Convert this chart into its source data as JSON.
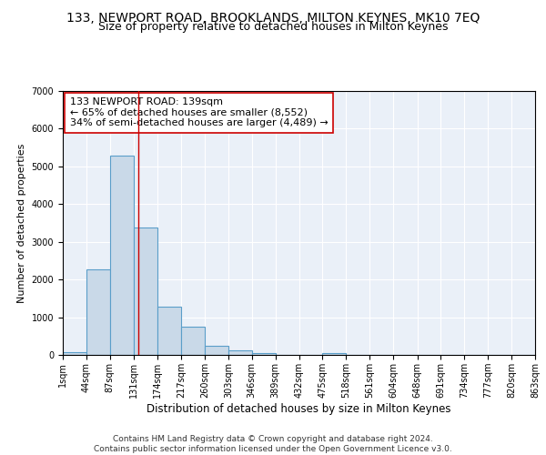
{
  "title": "133, NEWPORT ROAD, BROOKLANDS, MILTON KEYNES, MK10 7EQ",
  "subtitle": "Size of property relative to detached houses in Milton Keynes",
  "xlabel": "Distribution of detached houses by size in Milton Keynes",
  "ylabel": "Number of detached properties",
  "footer_line1": "Contains HM Land Registry data © Crown copyright and database right 2024.",
  "footer_line2": "Contains public sector information licensed under the Open Government Licence v3.0.",
  "annotation_line1": "133 NEWPORT ROAD: 139sqm",
  "annotation_line2": "← 65% of detached houses are smaller (8,552)",
  "annotation_line3": "34% of semi-detached houses are larger (4,489) →",
  "property_size": 139,
  "bar_edges": [
    1,
    44,
    87,
    131,
    174,
    217,
    260,
    303,
    346,
    389,
    432,
    475,
    518,
    561,
    604,
    648,
    691,
    734,
    777,
    820,
    863
  ],
  "bar_heights": [
    70,
    2270,
    5280,
    3380,
    1290,
    750,
    235,
    110,
    55,
    0,
    0,
    55,
    0,
    0,
    0,
    0,
    0,
    0,
    0,
    0
  ],
  "bar_color": "#c9d9e8",
  "bar_edge_color": "#5a9ec9",
  "bar_linewidth": 0.8,
  "vline_color": "#cc0000",
  "vline_x": 139,
  "ylim": [
    0,
    7000
  ],
  "yticks": [
    0,
    1000,
    2000,
    3000,
    4000,
    5000,
    6000,
    7000
  ],
  "bg_color": "#eaf0f8",
  "grid_color": "#ffffff",
  "title_fontsize": 10,
  "subtitle_fontsize": 9,
  "xlabel_fontsize": 8.5,
  "ylabel_fontsize": 8,
  "tick_fontsize": 7,
  "annotation_fontsize": 8,
  "footer_fontsize": 6.5
}
